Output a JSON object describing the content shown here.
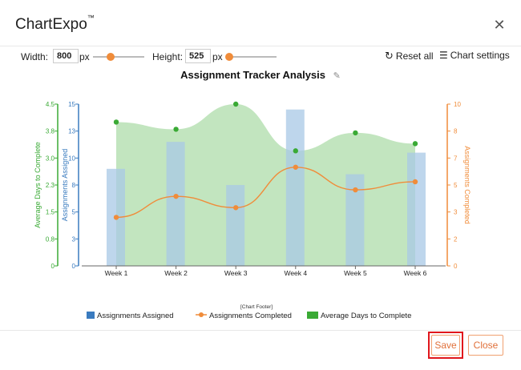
{
  "app": {
    "title": "ChartExpo",
    "trademark": "™"
  },
  "toolbar": {
    "width_label": "Width:",
    "width_value": "800",
    "width_unit": "px",
    "width_fraction": 0.35,
    "height_label": "Height:",
    "height_value": "525",
    "height_unit": "px",
    "height_fraction": 0.05,
    "reset_label": "Reset all",
    "settings_label": "Chart settings"
  },
  "chart_data": {
    "type": "bar",
    "title": "Assignment Tracker Analysis",
    "footer": "[Chart Footer]",
    "categories": [
      "Week 1",
      "Week 2",
      "Week 3",
      "Week 4",
      "Week 5",
      "Week 6"
    ],
    "series": [
      {
        "name": "Assignments Assigned",
        "kind": "bar",
        "axis": "left-inner",
        "color": "#a8c8e6",
        "values": [
          9,
          11.5,
          7.5,
          14.5,
          8.5,
          10.5
        ]
      },
      {
        "name": "Assignments Completed",
        "kind": "line",
        "axis": "right",
        "color": "#f08c3a",
        "values": [
          3,
          4.3,
          3.6,
          6.1,
          4.7,
          5.2
        ]
      },
      {
        "name": "Average Days to Complete",
        "kind": "area",
        "axis": "left-outer",
        "color": "#8fd08a",
        "values": [
          4.0,
          3.8,
          4.5,
          3.2,
          3.7,
          3.4
        ]
      }
    ],
    "y_axes": {
      "left_outer": {
        "label": "Average Days to Complete",
        "ticks": [
          "0",
          "0.8",
          "1.5",
          "2.3",
          "3.0",
          "3.8",
          "4.5"
        ],
        "range": [
          0,
          4.5
        ]
      },
      "left_inner": {
        "label": "Assignments Assigned",
        "ticks": [
          "0",
          "3",
          "5",
          "8",
          "10",
          "13",
          "15"
        ],
        "range": [
          0,
          15
        ]
      },
      "right": {
        "label": "Assignments Completed",
        "ticks": [
          "0",
          "2",
          "3",
          "5",
          "7",
          "8",
          "10"
        ],
        "range": [
          0,
          10
        ]
      }
    },
    "legend": [
      "Assignments Assigned",
      "Assignments Completed",
      "Average Days to Complete"
    ],
    "legend_position": "bottom"
  },
  "actions": {
    "save_label": "Save",
    "close_label": "Close"
  },
  "colors": {
    "accent": "#f08c3a",
    "green": "#3aaa35",
    "blue": "#3a7bbf",
    "highlight": "#e0161c"
  }
}
